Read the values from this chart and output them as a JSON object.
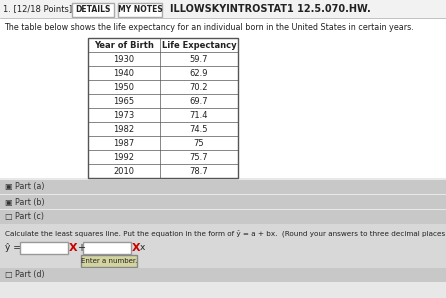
{
  "title_points": "1. [12/18 Points]",
  "btn_details": "DETAILS",
  "btn_mynotes": "MY NOTES",
  "header_right": "ILLOWSKYINTROSTAT1 12.5.070.HW.",
  "description": "The table below shows the life expectancy for an individual born in the United States in certain years.",
  "col1_header": "Year of Birth",
  "col2_header": "Life Expectancy",
  "years": [
    1930,
    1940,
    1950,
    1965,
    1973,
    1982,
    1987,
    1992,
    2010
  ],
  "life_exp": [
    59.7,
    62.9,
    70.2,
    69.7,
    71.4,
    74.5,
    75,
    75.7,
    78.7
  ],
  "part_a_label": "▣ Part (a)",
  "part_b_label": "▣ Part (b)",
  "part_c_label": "□ Part (c)",
  "part_c_question": "Calculate the least squares line. Put the equation in the form of ŷ = a + bx.  (Round your answers to three decimal places.",
  "yhat_label": "ŷ =",
  "x_symbol": "x",
  "enter_number": "Enter a number.",
  "part_d_label": "□ Part (d)",
  "bg_color": "#e8e8e8",
  "white": "#ffffff",
  "table_bg": "#ffffff",
  "section_bg": "#c8c8c8",
  "part_c_bg": "#d8d8d8",
  "border_color": "#888888",
  "table_border": "#555555",
  "text_color": "#111111",
  "dark_text": "#222222",
  "red_x_color": "#cc0000",
  "tooltip_bg": "#d4d4a0",
  "top_bar_bg": "#f2f2f2"
}
